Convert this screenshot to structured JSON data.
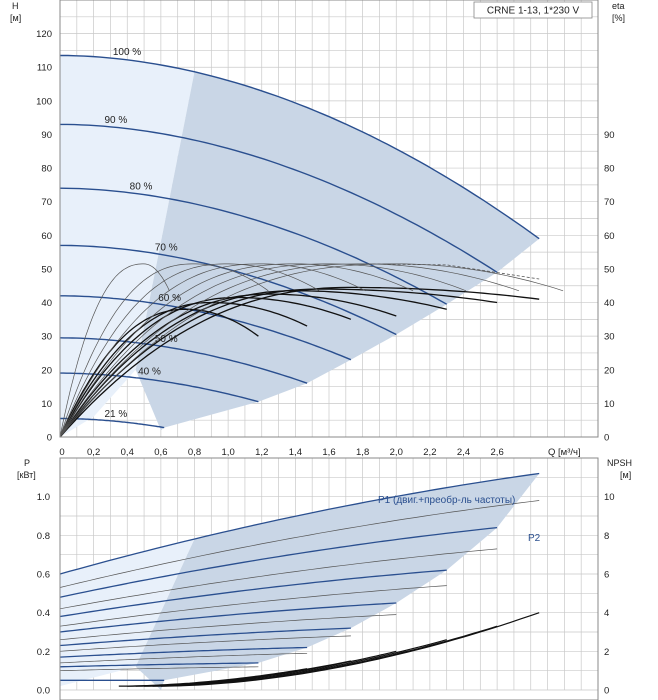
{
  "chart_data": [
    {
      "type": "line",
      "title": "CRNE 1-13, 1*230 V",
      "xlabel": "Q [м³/ч]",
      "ylabel": "H",
      "ylabel_unit": "[м]",
      "y2label": "eta",
      "y2label_unit": "[%]",
      "xlim": [
        0,
        3.2
      ],
      "ylim": [
        0,
        130
      ],
      "y2lim": [
        0,
        130
      ],
      "xticks": [
        "0",
        "0,2",
        "0,4",
        "0,6",
        "0,8",
        "1,0",
        "1,2",
        "1,4",
        "1,6",
        "1,8",
        "2,0",
        "2,2",
        "2,4",
        "2,6"
      ],
      "xtick_values": [
        0,
        0.2,
        0.4,
        0.6,
        0.8,
        1.0,
        1.2,
        1.4,
        1.6,
        1.8,
        2.0,
        2.2,
        2.4,
        2.6
      ],
      "yticks": [
        "0",
        "10",
        "20",
        "30",
        "40",
        "50",
        "60",
        "70",
        "80",
        "90",
        "100",
        "110",
        "120"
      ],
      "y2ticks": [
        "0",
        "10",
        "20",
        "30",
        "40",
        "50",
        "60",
        "70",
        "80",
        "90"
      ],
      "head_curves": [
        {
          "name": "100 %",
          "h0": 113.5,
          "qmax": 2.85,
          "hend": 59,
          "label_q": 0.35
        },
        {
          "name": "90 %",
          "h0": 93,
          "qmax": 2.6,
          "hend": 49,
          "label_q": 0.3
        },
        {
          "name": "80 %",
          "h0": 74,
          "qmax": 2.3,
          "hend": 39.5,
          "label_q": 0.45
        },
        {
          "name": "70 %",
          "h0": 57,
          "qmax": 2.0,
          "hend": 30.5,
          "label_q": 0.6
        },
        {
          "name": "60 %",
          "h0": 42,
          "qmax": 1.73,
          "hend": 23,
          "label_q": 0.62
        },
        {
          "name": "50 %",
          "h0": 29.5,
          "qmax": 1.47,
          "hend": 16,
          "label_q": 0.6
        },
        {
          "name": "40 %",
          "h0": 19,
          "qmax": 1.18,
          "hend": 10.5,
          "label_q": 0.5
        },
        {
          "name": "21 %",
          "h0": 5.5,
          "qmax": 0.62,
          "hend": 2.8,
          "label_q": 0.3
        }
      ],
      "eta_curves": [
        {
          "peak_q": 1.73,
          "peak": 44.5,
          "qmax": 2.85,
          "end": 41
        },
        {
          "peak_q": 1.55,
          "peak": 44,
          "qmax": 2.6,
          "end": 40
        },
        {
          "peak_q": 1.4,
          "peak": 43.5,
          "qmax": 2.3,
          "end": 38
        },
        {
          "peak_q": 1.25,
          "peak": 42.5,
          "qmax": 2.0,
          "end": 36
        },
        {
          "peak_q": 1.05,
          "peak": 41.5,
          "qmax": 1.73,
          "end": 35
        },
        {
          "peak_q": 0.9,
          "peak": 40,
          "qmax": 1.47,
          "end": 33
        },
        {
          "peak_q": 0.75,
          "peak": 38,
          "qmax": 1.18,
          "end": 30
        }
      ],
      "eta_total_curves": [
        {
          "peak_q": 0.5,
          "peak": 51.5,
          "qmax": 0.62
        },
        {
          "peak_q": 0.8,
          "peak": 51.5,
          "qmax": 1.18
        },
        {
          "peak_q": 1.0,
          "peak": 51.5,
          "qmax": 1.47
        },
        {
          "peak_q": 1.2,
          "peak": 51.5,
          "qmax": 1.73
        },
        {
          "peak_q": 1.4,
          "peak": 51.5,
          "qmax": 2.0
        },
        {
          "peak_q": 1.6,
          "peak": 51.5,
          "qmax": 2.3
        },
        {
          "peak_q": 1.8,
          "peak": 51.5,
          "qmax": 2.6
        },
        {
          "peak_q": 2.0,
          "peak": 51.5,
          "qmax": 2.85
        }
      ],
      "annotations": [
        "100 %",
        "90 %",
        "80 %",
        "70 %",
        "60 %",
        "50 %",
        "40 %",
        "21 %"
      ]
    },
    {
      "type": "line",
      "xlabel": "Q [м³/ч]",
      "ylabel": "P",
      "ylabel_unit": "[кВт]",
      "y2label": "NPSH",
      "y2label_unit": "[м]",
      "xlim": [
        0,
        3.2
      ],
      "ylim": [
        0,
        1.2
      ],
      "y2lim": [
        0,
        12
      ],
      "yticks": [
        "0.0",
        "0.2",
        "0.4",
        "0.6",
        "0.8",
        "1.0"
      ],
      "y2ticks": [
        "0",
        "2",
        "4",
        "6",
        "8",
        "10"
      ],
      "series_labels": [
        "P1 (двиг.+преобр-ль частоты)",
        "P2"
      ],
      "p1_curves": [
        {
          "qmax": 2.85,
          "p0": 0.6,
          "pend": 1.12
        },
        {
          "qmax": 2.6,
          "p0": 0.48,
          "pend": 0.84
        },
        {
          "qmax": 2.3,
          "p0": 0.38,
          "pend": 0.62
        },
        {
          "qmax": 2.0,
          "p0": 0.3,
          "pend": 0.45
        },
        {
          "qmax": 1.73,
          "p0": 0.23,
          "pend": 0.32
        },
        {
          "qmax": 1.47,
          "p0": 0.17,
          "pend": 0.22
        },
        {
          "qmax": 1.18,
          "p0": 0.12,
          "pend": 0.14
        },
        {
          "qmax": 0.62,
          "p0": 0.05,
          "pend": 0.05
        }
      ],
      "p2_curves": [
        {
          "qmax": 2.85,
          "p0": 0.53,
          "pend": 0.98
        },
        {
          "qmax": 2.6,
          "p0": 0.42,
          "pend": 0.73
        },
        {
          "qmax": 2.3,
          "p0": 0.33,
          "pend": 0.54
        },
        {
          "qmax": 2.0,
          "p0": 0.26,
          "pend": 0.39
        },
        {
          "qmax": 1.73,
          "p0": 0.2,
          "pend": 0.28
        },
        {
          "qmax": 1.47,
          "p0": 0.14,
          "pend": 0.19
        },
        {
          "qmax": 1.18,
          "p0": 0.1,
          "pend": 0.12
        }
      ],
      "npsh_curves": [
        {
          "q_start": 0.6,
          "qmax": 2.85,
          "end": 4.0
        },
        {
          "q_start": 0.55,
          "qmax": 2.6,
          "end": 3.3
        },
        {
          "q_start": 0.5,
          "qmax": 2.3,
          "end": 2.6
        },
        {
          "q_start": 0.45,
          "qmax": 2.0,
          "end": 2.0
        },
        {
          "q_start": 0.4,
          "qmax": 1.73,
          "end": 1.5
        },
        {
          "q_start": 0.35,
          "qmax": 1.47,
          "end": 1.1
        }
      ]
    }
  ],
  "colors": {
    "curve": "#2a4f8f",
    "fill": "#c9d6e6",
    "light_fill": "#e8f0fa",
    "black": "#111111",
    "gray": "#555555",
    "grid": "#c9c9c9"
  }
}
